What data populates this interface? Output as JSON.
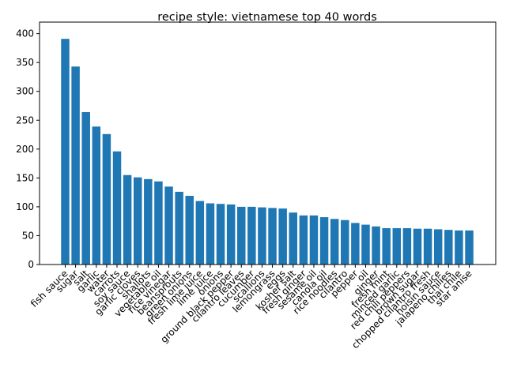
{
  "chart_data": {
    "type": "bar",
    "title": "recipe style: vietnamese top 40 words",
    "xlabel": "",
    "ylabel": "",
    "ylim": [
      0,
      420
    ],
    "yticks": [
      0,
      50,
      100,
      150,
      200,
      250,
      300,
      350,
      400
    ],
    "bar_color": "#1f77b4",
    "grid": false,
    "categories": [
      "fish sauce",
      "sugar",
      "salt",
      "garlic",
      "water",
      "carrots",
      "soy sauce",
      "garlic cloves",
      "shallots",
      "vegetable oil",
      "rice vinegar",
      "beansprouts",
      "green onions",
      "fresh lime juice",
      "lime juice",
      "onions",
      "ground black pepper",
      "cilantro leaves",
      "cucumber",
      "scallions",
      "lemongrass",
      "eggs",
      "kosher salt",
      "fresh ginger",
      "sesame oil",
      "canola oil",
      "rice noodles",
      "cilantro",
      "pepper",
      "oil",
      "ginger",
      "fresh mint",
      "minced garlic",
      "red chili peppers",
      "brown sugar",
      "chopped cilantro fresh",
      "hoisin sauce",
      "jalapeno chilies",
      "thai chile",
      "star anise"
    ],
    "values": [
      391,
      343,
      264,
      239,
      226,
      196,
      155,
      151,
      148,
      144,
      135,
      126,
      119,
      110,
      106,
      105,
      104,
      100,
      100,
      99,
      98,
      97,
      90,
      85,
      85,
      82,
      79,
      77,
      72,
      69,
      66,
      63,
      63,
      63,
      62,
      62,
      61,
      60,
      59,
      59
    ]
  }
}
